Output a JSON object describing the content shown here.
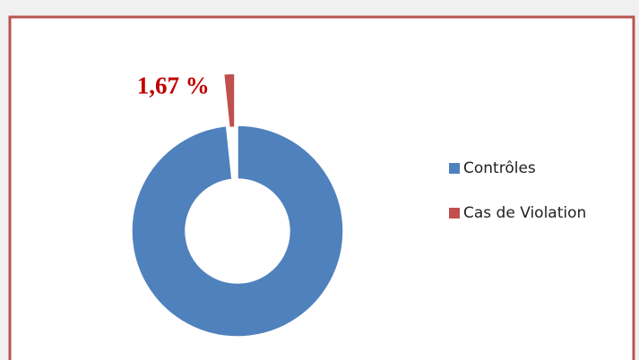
{
  "chart_data": {
    "type": "pie",
    "hole": true,
    "categories": [
      "Contrôles",
      "Cas de Violation"
    ],
    "values": [
      98.33,
      1.67
    ],
    "value_labels": [
      null,
      "1,67 %"
    ],
    "colors": [
      "#4f81bd",
      "#c0504d"
    ],
    "legend": "right"
  }
}
